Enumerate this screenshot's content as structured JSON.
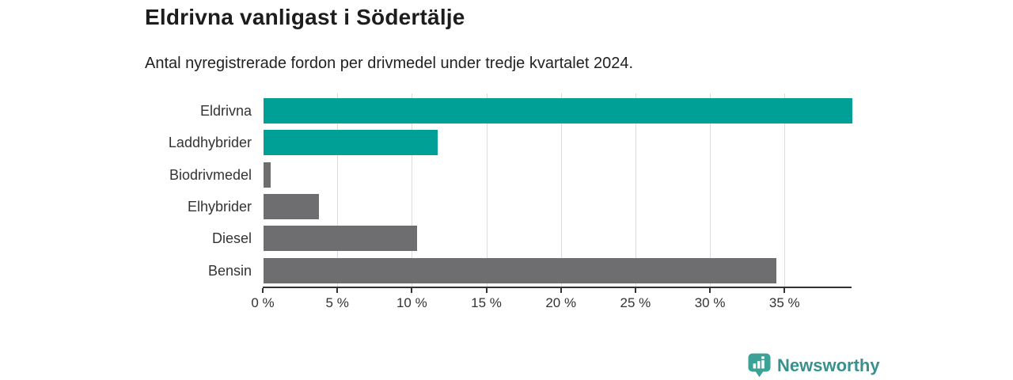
{
  "header": {
    "title": "Eldrivna vanligast i Södertälje",
    "subtitle": "Antal nyregistrerade fordon per drivmedel under tredje kvartalet 2024."
  },
  "chart_data": {
    "type": "bar",
    "orientation": "horizontal",
    "title": "Eldrivna vanligast i Södertälje",
    "subtitle": "Antal nyregistrerade fordon per drivmedel under tredje kvartalet 2024.",
    "categories": [
      "Eldrivna",
      "Laddhybrider",
      "Biodrivmedel",
      "Elhybrider",
      "Diesel",
      "Bensin"
    ],
    "values": [
      39.5,
      11.7,
      0.5,
      3.7,
      10.3,
      34.4
    ],
    "unit": "%",
    "bar_colors": [
      "#00a096",
      "#00a096",
      "#6e6e71",
      "#6e6e71",
      "#6e6e71",
      "#6e6e71"
    ],
    "xlabel": "",
    "ylabel": "",
    "x_ticks": [
      0,
      5,
      10,
      15,
      20,
      25,
      30,
      35
    ],
    "x_tick_labels": [
      "0 %",
      "5 %",
      "10 %",
      "15 %",
      "20 %",
      "25 %",
      "30 %",
      "35 %"
    ],
    "xlim": [
      0,
      39.5
    ],
    "grid": "vertical-only",
    "legend": "none"
  },
  "footer": {
    "brand": "Newsworthy",
    "brand_icon": "bar-chart-bubble-icon",
    "brand_text_color": "#38918c",
    "brand_icon_color": "#3aa296"
  },
  "colors": {
    "accent_teal": "#00a096",
    "neutral_gray": "#6e6e71",
    "axis": "#333333",
    "gridline": "#dcdcdc",
    "title_text": "#1d1d1d",
    "background": "#ffffff"
  }
}
